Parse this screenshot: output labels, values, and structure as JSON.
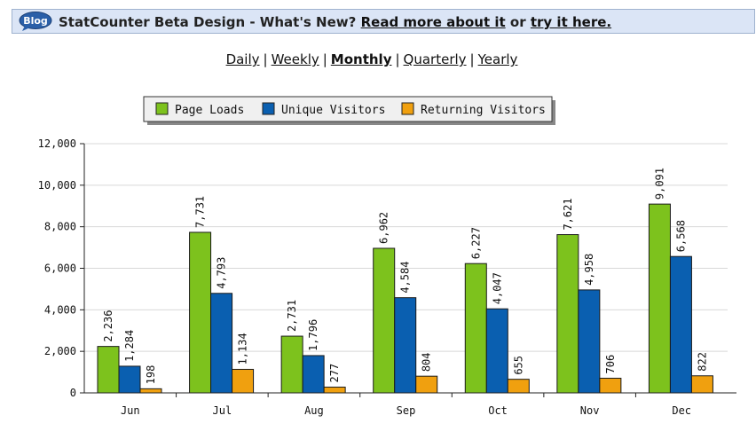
{
  "banner": {
    "icon_label": "Blog",
    "prefix": "StatCounter Beta Design - What's New?",
    "link_read_more": "Read more about it",
    "middle": "or",
    "link_try": "try it here."
  },
  "periods": [
    {
      "label": "Daily",
      "active": false
    },
    {
      "label": "Weekly",
      "active": false
    },
    {
      "label": "Monthly",
      "active": true
    },
    {
      "label": "Quarterly",
      "active": false
    },
    {
      "label": "Yearly",
      "active": false
    }
  ],
  "colors": {
    "page_loads": "#7dc21d",
    "unique_visitors": "#0a5fb0",
    "returning_visitors": "#f0a00f",
    "banner_bg": "#dbe5f6"
  },
  "chart_data": {
    "type": "bar",
    "categories": [
      "Jun",
      "Jul",
      "Aug",
      "Sep",
      "Oct",
      "Nov",
      "Dec"
    ],
    "series": [
      {
        "name": "Page Loads",
        "values": [
          2236,
          7731,
          2731,
          6962,
          6227,
          7621,
          9091
        ],
        "labels": [
          "2,236",
          "7,731",
          "2,731",
          "6,962",
          "6,227",
          "7,621",
          "9,091"
        ]
      },
      {
        "name": "Unique Visitors",
        "values": [
          1284,
          4793,
          1796,
          4584,
          4047,
          4958,
          6568
        ],
        "labels": [
          "1,284",
          "4,793",
          "1,796",
          "4,584",
          "4,047",
          "4,958",
          "6,568"
        ]
      },
      {
        "name": "Returning Visitors",
        "values": [
          198,
          1134,
          277,
          804,
          655,
          706,
          822
        ],
        "labels": [
          "198",
          "1,134",
          "277",
          "804",
          "655",
          "706",
          "822"
        ]
      }
    ],
    "y_ticks": [
      0,
      2000,
      4000,
      6000,
      8000,
      10000,
      12000
    ],
    "y_tick_labels": [
      "0",
      "2,000",
      "4,000",
      "6,000",
      "8,000",
      "10,000",
      "12,000"
    ],
    "ylim": [
      0,
      12000
    ],
    "grid": true,
    "legend_position": "top-center"
  }
}
